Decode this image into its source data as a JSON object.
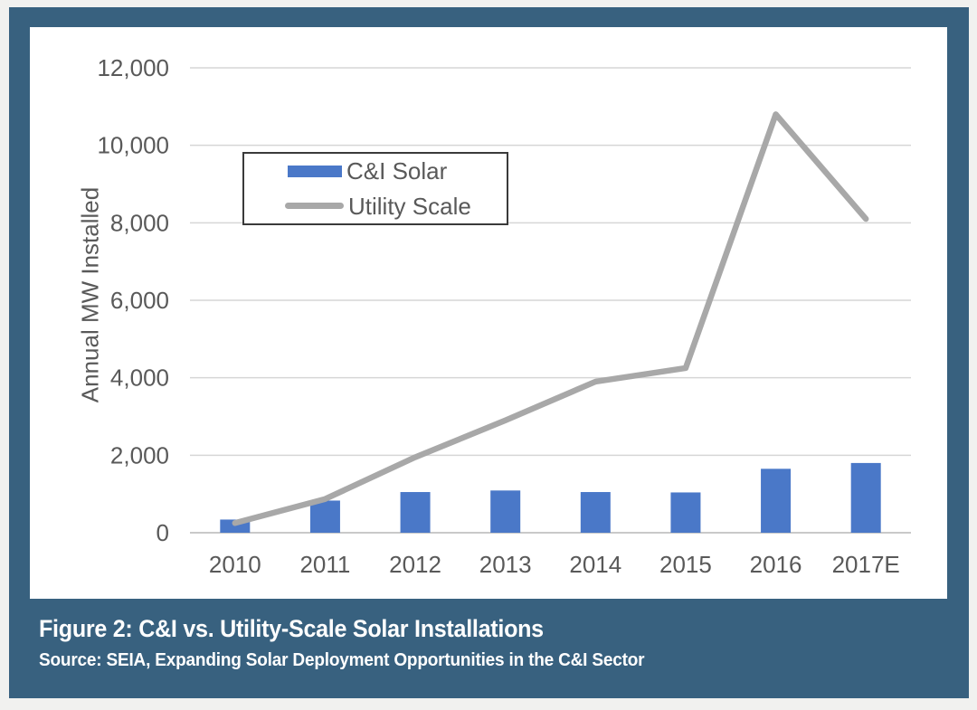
{
  "caption": {
    "title": "Figure 2: C&I vs. Utility-Scale Solar Installations",
    "source": "Source: SEIA, Expanding Solar Deployment Opportunities in the C&I Sector"
  },
  "colors": {
    "frame_blue": "#38617F",
    "page_bg": "#F1F1EF",
    "card_bg": "#FFFFFF",
    "bar_blue": "#4A78C8",
    "line_gray": "#A8A8A8",
    "grid_gray": "#D6D6D6",
    "zero_line_gray": "#C9C9C9",
    "axis_text_gray": "#595959",
    "legend_border": "#3A3A3A",
    "caption_text": "#FFFFFF"
  },
  "chart_data": {
    "type": "bar",
    "subtype": "bar+line combo",
    "categories": [
      "2010",
      "2011",
      "2012",
      "2013",
      "2014",
      "2015",
      "2016",
      "2017E"
    ],
    "series": [
      {
        "name": "C&I Solar",
        "type": "bar",
        "color": "#4A78C8",
        "values": [
          340,
          830,
          1050,
          1090,
          1050,
          1040,
          1650,
          1800
        ]
      },
      {
        "name": "Utility Scale",
        "type": "line",
        "color": "#A8A8A8",
        "values": [
          250,
          870,
          1950,
          2900,
          3900,
          4250,
          10800,
          8100
        ]
      }
    ],
    "title": "",
    "xlabel": "",
    "ylabel": "Annual MW Installed",
    "ylim": [
      0,
      12000
    ],
    "ytick_step": 2000,
    "ytick_labels": [
      "0",
      "2,000",
      "4,000",
      "6,000",
      "8,000",
      "10,000",
      "12,000"
    ],
    "grid": true,
    "legend_position": "inside-upper-left"
  }
}
